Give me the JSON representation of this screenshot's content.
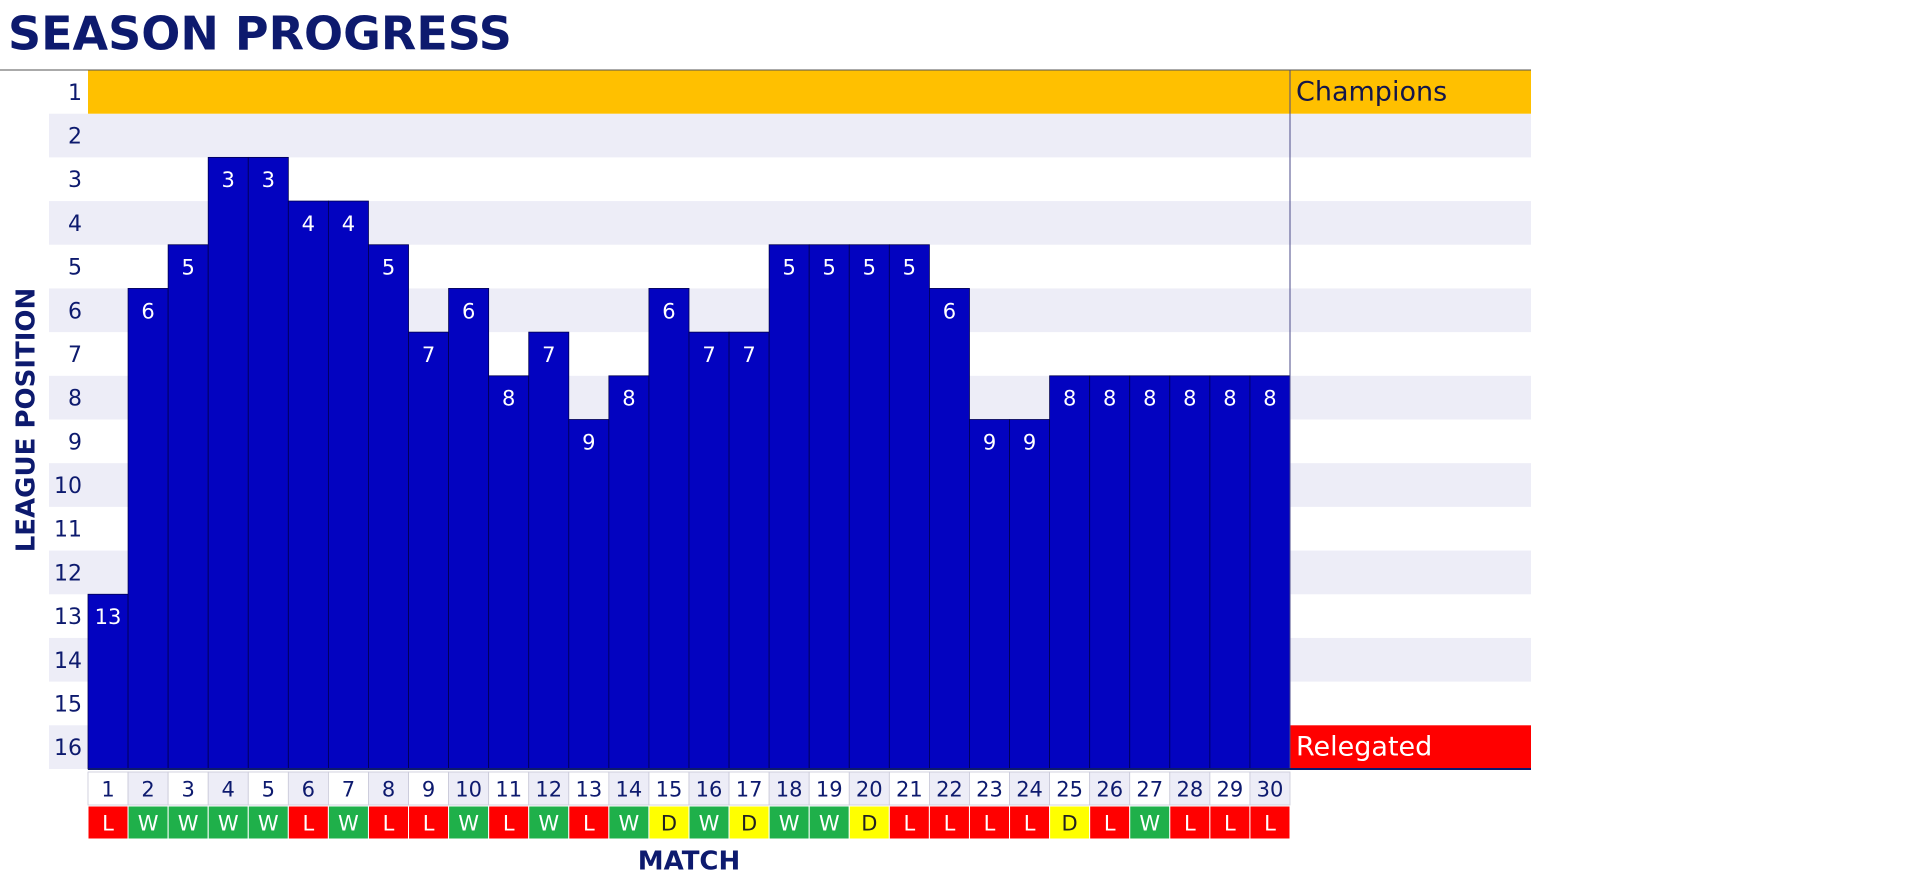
{
  "chart_data": {
    "type": "bar",
    "title": "SEASON PROGRESS",
    "x_label": "MATCH",
    "y_label": "LEAGUE POSITION",
    "categories": [
      "1",
      "2",
      "3",
      "4",
      "5",
      "6",
      "7",
      "8",
      "9",
      "10",
      "11",
      "12",
      "13",
      "14",
      "15",
      "16",
      "17",
      "18",
      "19",
      "20",
      "21",
      "22",
      "23",
      "24",
      "25",
      "26",
      "27",
      "28",
      "29",
      "30"
    ],
    "values": [
      13,
      6,
      5,
      3,
      3,
      4,
      4,
      5,
      7,
      6,
      8,
      7,
      9,
      8,
      6,
      7,
      7,
      5,
      5,
      5,
      5,
      6,
      9,
      9,
      8,
      8,
      8,
      8,
      8,
      8
    ],
    "color": "#0303c0",
    "results": [
      "L",
      "W",
      "W",
      "W",
      "W",
      "L",
      "W",
      "L",
      "L",
      "W",
      "L",
      "W",
      "L",
      "W",
      "D",
      "W",
      "D",
      "W",
      "W",
      "D",
      "L",
      "L",
      "L",
      "L",
      "D",
      "L",
      "W",
      "L",
      "L",
      "L"
    ],
    "result_colors": {
      "W": "#1fb04a",
      "L": "#ff0000",
      "D": "#ffff00"
    },
    "ylim": [
      16.5,
      0.5
    ],
    "yticks": [
      1,
      2,
      3,
      4,
      5,
      6,
      7,
      8,
      9,
      10,
      11,
      12,
      13,
      14,
      15,
      16
    ],
    "annotations": [
      {
        "text": "Champions",
        "position": 1,
        "color": "#ffc000",
        "text_color": "#14164a"
      },
      {
        "text": "Relegated",
        "position": 16,
        "color": "#ff0000",
        "text_color": "#ffffff"
      }
    ]
  }
}
